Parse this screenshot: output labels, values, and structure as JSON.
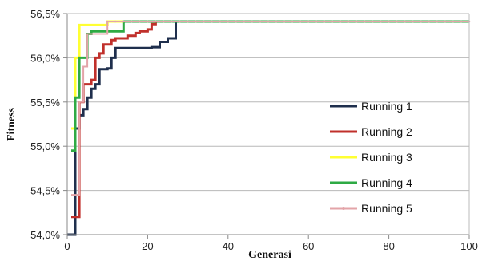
{
  "chart_data": {
    "type": "line",
    "title": "",
    "xlabel": "Generasi",
    "ylabel": "Fitness",
    "xlim": [
      0,
      100
    ],
    "ylim": [
      54.0,
      56.5
    ],
    "xticks": [
      0,
      20,
      40,
      60,
      80,
      100
    ],
    "xtick_labels": [
      "0",
      "20",
      "40",
      "60",
      "80",
      "100"
    ],
    "yticks": [
      54.0,
      54.5,
      55.0,
      55.5,
      56.0,
      56.5
    ],
    "ytick_labels": [
      "54,0%",
      "54,5%",
      "55,0%",
      "55,5%",
      "56,0%",
      "56,5%"
    ],
    "grid": "horizontal",
    "legend_position": "right",
    "series": [
      {
        "name": "Running 1",
        "color": "#1f2f4d",
        "marker": false,
        "x": [
          0,
          1,
          2,
          3,
          4,
          5,
          6,
          7,
          8,
          10,
          11,
          12,
          13,
          20,
          21,
          22,
          23,
          24,
          25,
          26,
          27,
          100
        ],
        "y": [
          54.0,
          54.0,
          55.2,
          55.35,
          55.42,
          55.55,
          55.65,
          55.7,
          55.87,
          55.88,
          56.0,
          56.11,
          56.11,
          56.11,
          56.12,
          56.12,
          56.18,
          56.18,
          56.22,
          56.22,
          56.41,
          56.41
        ]
      },
      {
        "name": "Running 2",
        "color": "#c0302b",
        "marker": false,
        "x": [
          1,
          2,
          3,
          4,
          5,
          6,
          7,
          8,
          9,
          11,
          12,
          14,
          15,
          17,
          18,
          20,
          21,
          22,
          100
        ],
        "y": [
          54.2,
          54.2,
          55.5,
          55.7,
          55.7,
          55.75,
          56.0,
          56.05,
          56.15,
          56.2,
          56.22,
          56.22,
          56.25,
          56.28,
          56.3,
          56.32,
          56.38,
          56.41,
          56.41
        ]
      },
      {
        "name": "Running 3",
        "color": "#ffff33",
        "marker": false,
        "x": [
          1,
          2,
          3,
          9,
          10,
          100
        ],
        "y": [
          55.2,
          56.0,
          56.37,
          56.37,
          56.41,
          56.41
        ]
      },
      {
        "name": "Running 4",
        "color": "#2eaa44",
        "marker": false,
        "x": [
          1,
          2,
          3,
          4,
          5,
          6,
          13,
          14,
          100
        ],
        "y": [
          54.95,
          55.55,
          56.0,
          56.0,
          56.27,
          56.3,
          56.3,
          56.41,
          56.41
        ]
      },
      {
        "name": "Running 5",
        "color": "#e3a4a8",
        "marker": true,
        "x": [
          1,
          2,
          3,
          4,
          5,
          9,
          10,
          100
        ],
        "y": [
          54.45,
          54.45,
          55.5,
          55.9,
          56.27,
          56.27,
          56.41,
          56.41
        ]
      }
    ]
  }
}
